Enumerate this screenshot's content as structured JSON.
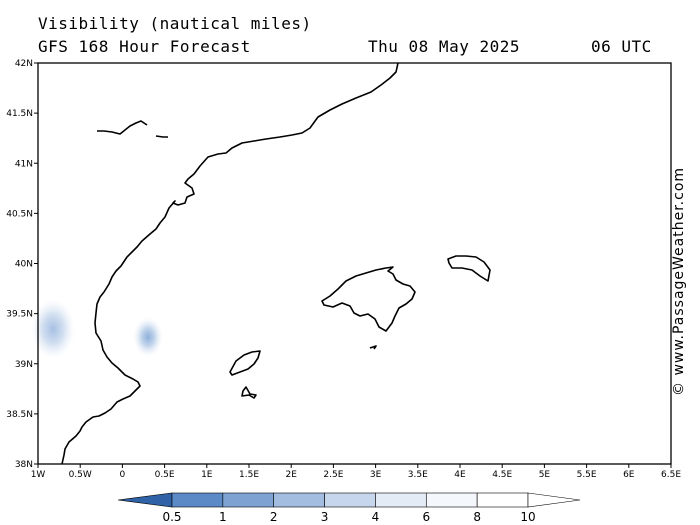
{
  "title": {
    "line1": "Visibility (nautical miles)",
    "model": "GFS 168 Hour Forecast",
    "date": "Thu 08 May 2025",
    "time": "06 UTC"
  },
  "credit": "© www.PassageWeather.com",
  "map": {
    "lon_range": [
      -1,
      6.5
    ],
    "lat_range": [
      38,
      42
    ],
    "lon_ticks": [
      {
        "v": -1,
        "label": "1W"
      },
      {
        "v": -0.5,
        "label": "0.5W"
      },
      {
        "v": 0,
        "label": "0"
      },
      {
        "v": 0.5,
        "label": "0.5E"
      },
      {
        "v": 1,
        "label": "1E"
      },
      {
        "v": 1.5,
        "label": "1.5E"
      },
      {
        "v": 2,
        "label": "2E"
      },
      {
        "v": 2.5,
        "label": "2.5E"
      },
      {
        "v": 3,
        "label": "3E"
      },
      {
        "v": 3.5,
        "label": "3.5E"
      },
      {
        "v": 4,
        "label": "4E"
      },
      {
        "v": 4.5,
        "label": "4.5E"
      },
      {
        "v": 5,
        "label": "5E"
      },
      {
        "v": 5.5,
        "label": "5.5E"
      },
      {
        "v": 6,
        "label": "6E"
      },
      {
        "v": 6.5,
        "label": "6.5E"
      }
    ],
    "lat_ticks": [
      {
        "v": 42,
        "label": "42N"
      },
      {
        "v": 41.5,
        "label": "41.5N"
      },
      {
        "v": 41,
        "label": "41N"
      },
      {
        "v": 40.5,
        "label": "40.5N"
      },
      {
        "v": 40,
        "label": "40N"
      },
      {
        "v": 39.5,
        "label": "39.5N"
      },
      {
        "v": 39,
        "label": "39N"
      },
      {
        "v": 38.5,
        "label": "38.5N"
      },
      {
        "v": 38,
        "label": "38N"
      }
    ]
  },
  "colorbar": {
    "labels": [
      "0.5",
      "1",
      "2",
      "3",
      "4",
      "6",
      "8",
      "10"
    ],
    "colors": [
      "#3f73b8",
      "#5b8ac6",
      "#7ea3d2",
      "#a2bde0",
      "#c6d6ec",
      "#e3ebf6",
      "#f4f7fb",
      "#ffffff"
    ]
  }
}
